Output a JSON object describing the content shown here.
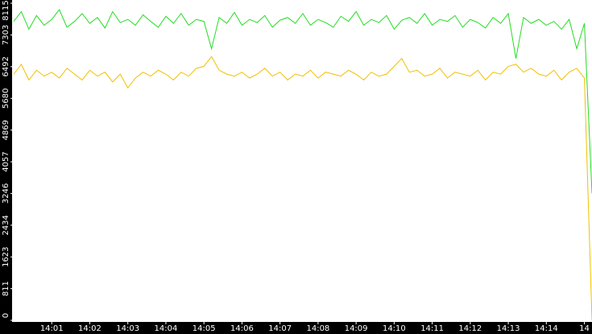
{
  "chart_data": {
    "type": "line",
    "x": [
      0,
      0.2,
      0.4,
      0.6,
      0.8,
      1,
      1.2,
      1.4,
      1.6,
      1.8,
      2,
      2.2,
      2.4,
      2.6,
      2.8,
      3,
      3.2,
      3.4,
      3.6,
      3.8,
      4,
      4.2,
      4.4,
      4.6,
      4.8,
      5,
      5.2,
      5.4,
      5.6,
      5.8,
      6,
      6.2,
      6.4,
      6.6,
      6.8,
      7,
      7.2,
      7.4,
      7.6,
      7.8,
      8,
      8.2,
      8.4,
      8.6,
      8.8,
      9,
      9.2,
      9.4,
      9.6,
      9.8,
      10,
      10.2,
      10.4,
      10.6,
      10.8,
      11,
      11.2,
      11.4,
      11.6,
      11.8,
      12,
      12.2,
      12.4,
      12.6,
      12.8,
      13,
      13.2,
      13.4,
      13.6,
      13.8,
      14,
      14.2,
      14.4,
      14.6,
      14.8,
      15,
      15.2
    ],
    "series": [
      {
        "color": "#22dd22",
        "values": [
          7650,
          7900,
          7450,
          7800,
          7550,
          7700,
          7950,
          7500,
          7650,
          7850,
          7600,
          7750,
          7480,
          7900,
          7620,
          7700,
          7550,
          7820,
          7650,
          7500,
          7780,
          7600,
          7850,
          7550,
          7700,
          7650,
          6950,
          7750,
          7600,
          7880,
          7550,
          7700,
          7620,
          7800,
          7500,
          7680,
          7750,
          7600,
          7850,
          7550,
          7700,
          7620,
          7500,
          7780,
          7650,
          7900,
          7550,
          7700,
          7620,
          7800,
          7450,
          7680,
          7750,
          7600,
          7850,
          7550,
          7700,
          7650,
          7800,
          7500,
          7700,
          7620,
          7480,
          7750,
          7600,
          7850,
          6700,
          7750,
          7600,
          7700,
          7550,
          7650,
          7450,
          7700,
          6950,
          7600,
          3250
        ]
      },
      {
        "color": "#f0c000",
        "values": [
          6300,
          6550,
          6150,
          6400,
          6250,
          6350,
          6200,
          6450,
          6300,
          6150,
          6400,
          6250,
          6350,
          6100,
          6300,
          5950,
          6200,
          6350,
          6250,
          6400,
          6300,
          6150,
          6350,
          6250,
          6450,
          6500,
          6750,
          6400,
          6300,
          6250,
          6350,
          6200,
          6300,
          6450,
          6250,
          6350,
          6150,
          6300,
          6250,
          6400,
          6200,
          6350,
          6300,
          6250,
          6400,
          6300,
          6150,
          6350,
          6250,
          6300,
          6500,
          6700,
          6350,
          6400,
          6250,
          6300,
          6450,
          6200,
          6350,
          6300,
          6250,
          6400,
          6150,
          6350,
          6300,
          6500,
          6550,
          6350,
          6450,
          6300,
          6250,
          6400,
          6150,
          6350,
          6450,
          6200,
          0
        ]
      }
    ],
    "xlim": [
      0,
      15.2
    ],
    "xticks": [
      {
        "value": 1,
        "label": "14:01"
      },
      {
        "value": 2,
        "label": "14:02"
      },
      {
        "value": 3,
        "label": "14:03"
      },
      {
        "value": 4,
        "label": "14:04"
      },
      {
        "value": 5,
        "label": "14:05"
      },
      {
        "value": 6,
        "label": "14:06"
      },
      {
        "value": 7,
        "label": "14:07"
      },
      {
        "value": 8,
        "label": "14:08"
      },
      {
        "value": 9,
        "label": "14:09"
      },
      {
        "value": 10,
        "label": "14:10"
      },
      {
        "value": 11,
        "label": "14:11"
      },
      {
        "value": 12,
        "label": "14:12"
      },
      {
        "value": 13,
        "label": "14:13"
      },
      {
        "value": 14,
        "label": "14:14"
      },
      {
        "value": 15,
        "label": "14"
      }
    ],
    "ylim": [
      0,
      8115
    ],
    "yticks": [
      0,
      811,
      1623,
      2434,
      3246,
      4057,
      4869,
      5680,
      6492,
      7303,
      8115
    ],
    "grid": false
  }
}
